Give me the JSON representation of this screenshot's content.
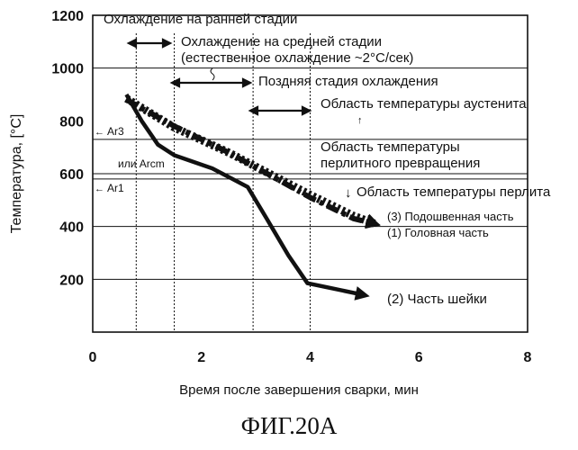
{
  "chart_data": {
    "type": "line",
    "ylabel": "Температура, [°C]",
    "xlabel": "Время после завершения сварки, мин",
    "xlim": [
      0,
      8
    ],
    "ylim": [
      0,
      1200
    ],
    "x_ticks": [
      "0",
      "2",
      "4",
      "6",
      "8"
    ],
    "y_ticks": [
      "200",
      "400",
      "600",
      "800",
      "1000",
      "1200"
    ],
    "reference_lines": [
      {
        "label": "Ar3",
        "y": 730
      },
      {
        "label": "Ar1",
        "y": 580
      },
      {
        "label": "или Arcm",
        "y": 600
      }
    ],
    "horizontal_lines_y": [
      200,
      400,
      580,
      600,
      730,
      1000
    ],
    "vertical_lines_x": [
      0.8,
      1.5,
      2.95,
      4.0
    ],
    "series": [
      {
        "name": "(1) Головная часть",
        "style": "dash-dot",
        "points": [
          [
            0.62,
            880
          ],
          [
            1.5,
            780
          ],
          [
            2.5,
            680
          ],
          [
            3.3,
            590
          ],
          [
            4.0,
            510
          ],
          [
            4.8,
            430
          ],
          [
            5.2,
            410
          ]
        ]
      },
      {
        "name": "(2) Часть шейки",
        "style": "solid",
        "points": [
          [
            0.62,
            900
          ],
          [
            0.9,
            800
          ],
          [
            1.2,
            710
          ],
          [
            1.5,
            670
          ],
          [
            2.2,
            620
          ],
          [
            2.85,
            550
          ],
          [
            3.2,
            430
          ],
          [
            3.6,
            290
          ],
          [
            3.95,
            185
          ],
          [
            4.3,
            170
          ],
          [
            5.0,
            140
          ]
        ]
      },
      {
        "name": "(3) Подошвенная часть",
        "style": "dotted-thick",
        "points": [
          [
            0.62,
            885
          ],
          [
            1.5,
            775
          ],
          [
            2.5,
            680
          ],
          [
            3.3,
            595
          ],
          [
            4.0,
            520
          ],
          [
            4.8,
            440
          ],
          [
            5.2,
            410
          ]
        ]
      }
    ],
    "annotations": {
      "early_cooling": "Охлаждение на ранней стадии",
      "middle_cooling_1": "Охлаждение на средней стадии",
      "middle_cooling_2": "(естественное охлаждение ~2°C/сек)",
      "late_cooling": "Поздняя стадия охлаждения",
      "austenite_region": "Область температуры аустенита",
      "pearlite_transform_1": "Область температуры",
      "pearlite_transform_2": "перлитного превращения",
      "pearlite_region": "Область температуры перлита"
    }
  },
  "caption": "ФИГ.20А"
}
